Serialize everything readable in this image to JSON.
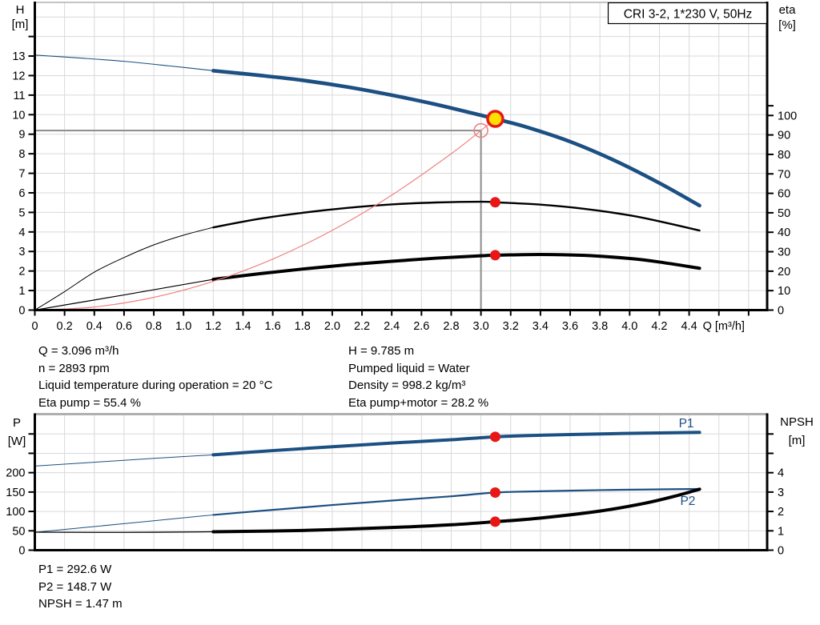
{
  "title_box": "CRI 3-2, 1*230 V, 50Hz",
  "colors": {
    "curve_blue": "#1c4f82",
    "black": "#000000",
    "red": "#e81717",
    "salmon": "#f08080",
    "duty_yellow": "#ffdf00",
    "grid": "#d9d9d9",
    "crosshair": "#8c8c8c",
    "axis": "#000000",
    "top_border": "#b0b0b0",
    "text": "#000000"
  },
  "info_top": {
    "left": [
      "Q = 3.096 m³/h",
      "n = 2893 rpm",
      "Liquid temperature during operation = 20 °C",
      "Eta pump = 55.4 %"
    ],
    "right": [
      "H = 9.785 m",
      "Pumped liquid = Water",
      "Density = 998.2 kg/m³",
      "Eta pump+motor = 28.2 %"
    ]
  },
  "info_bottom": [
    "P1 = 292.6 W",
    "P2 = 148.7 W",
    "NPSH = 1.47 m"
  ],
  "chart_data": [
    {
      "type": "line",
      "title": "CRI 3-2, 1*230 V, 50Hz",
      "x_axis": {
        "label": "Q [m³/h]",
        "min": 0,
        "max": 4.93,
        "tick_step": 0.2,
        "grid_max": 4.8,
        "tick_labels": [
          "0",
          "0.2",
          "0.4",
          "0.6",
          "0.8",
          "1.0",
          "1.2",
          "1.4",
          "1.6",
          "1.8",
          "2.0",
          "2.2",
          "2.4",
          "2.6",
          "2.8",
          "3.0",
          "3.2",
          "3.4",
          "3.6",
          "3.8",
          "4.0",
          "4.2",
          "4.4"
        ],
        "extra_ticks": [
          4.6,
          4.8
        ]
      },
      "left_axis": {
        "title": [
          "H",
          "[m]"
        ],
        "scale": "H",
        "ticks": [
          0,
          1,
          2,
          3,
          4,
          5,
          6,
          7,
          8,
          9,
          10,
          11,
          12,
          13
        ],
        "extra_ticks": [
          14
        ],
        "range": [
          0,
          15.7
        ]
      },
      "right_axis": {
        "title": [
          "eta",
          "[%]"
        ],
        "scale": "eta",
        "ticks": [
          0,
          10,
          20,
          30,
          40,
          50,
          60,
          70,
          80,
          90,
          100
        ],
        "extra_ticks": [
          105
        ],
        "range": [
          0,
          158
        ]
      },
      "h_grid": {
        "scale": "H",
        "values": [
          1,
          2,
          3,
          4,
          5,
          6,
          7,
          8,
          9,
          10,
          11,
          12,
          13,
          14,
          15
        ]
      },
      "series": [
        {
          "name": "head-curve",
          "scale": "H",
          "color": "curve_blue",
          "segments": [
            {
              "width": 1.1,
              "points": [
                [
                  0,
                  13.05
                ],
                [
                  0.3,
                  12.9
                ],
                [
                  0.6,
                  12.73
                ],
                [
                  0.9,
                  12.5
                ],
                [
                  1.2,
                  12.25
                ]
              ]
            },
            {
              "width": 4.6,
              "points": [
                [
                  1.2,
                  12.25
                ],
                [
                  1.5,
                  12.02
                ],
                [
                  1.8,
                  11.76
                ],
                [
                  2.1,
                  11.42
                ],
                [
                  2.4,
                  11.0
                ],
                [
                  2.7,
                  10.52
                ],
                [
                  3.0,
                  9.97
                ],
                [
                  3.096,
                  9.785
                ],
                [
                  3.3,
                  9.38
                ],
                [
                  3.6,
                  8.62
                ],
                [
                  3.9,
                  7.65
                ],
                [
                  4.2,
                  6.5
                ],
                [
                  4.47,
                  5.35
                ]
              ]
            }
          ]
        },
        {
          "name": "eta-pump-curve",
          "scale": "eta",
          "color": "black",
          "segments": [
            {
              "width": 1.0,
              "points": [
                [
                  0,
                  0
                ],
                [
                  0.2,
                  9.5
                ],
                [
                  0.4,
                  19.5
                ],
                [
                  0.6,
                  27
                ],
                [
                  0.8,
                  33.5
                ],
                [
                  1.0,
                  38.5
                ],
                [
                  1.2,
                  42.5
                ]
              ]
            },
            {
              "width": 2.4,
              "points": [
                [
                  1.2,
                  42.5
                ],
                [
                  1.5,
                  46.8
                ],
                [
                  1.8,
                  50
                ],
                [
                  2.1,
                  52.5
                ],
                [
                  2.4,
                  54.3
                ],
                [
                  2.7,
                  55.3
                ],
                [
                  3.0,
                  55.7
                ],
                [
                  3.096,
                  55.4
                ],
                [
                  3.4,
                  54.2
                ],
                [
                  3.7,
                  52
                ],
                [
                  4.0,
                  48.7
                ],
                [
                  4.2,
                  45.6
                ],
                [
                  4.47,
                  40.9
                ]
              ]
            }
          ]
        },
        {
          "name": "eta-pump-motor-curve",
          "scale": "eta",
          "color": "black",
          "segments": [
            {
              "width": 1.2,
              "points": [
                [
                  0,
                  0
                ],
                [
                  0.3,
                  3.9
                ],
                [
                  0.6,
                  7.8
                ],
                [
                  0.9,
                  11.8
                ],
                [
                  1.2,
                  15.8
                ]
              ]
            },
            {
              "width": 4.0,
              "points": [
                [
                  1.2,
                  15.8
                ],
                [
                  1.5,
                  18.6
                ],
                [
                  1.8,
                  21.1
                ],
                [
                  2.1,
                  23.3
                ],
                [
                  2.4,
                  25.1
                ],
                [
                  2.7,
                  26.7
                ],
                [
                  3.0,
                  27.9
                ],
                [
                  3.096,
                  28.2
                ],
                [
                  3.4,
                  28.6
                ],
                [
                  3.7,
                  28.1
                ],
                [
                  4.0,
                  26.5
                ],
                [
                  4.2,
                  24.7
                ],
                [
                  4.47,
                  21.5
                ]
              ]
            }
          ]
        },
        {
          "name": "system-curve",
          "scale": "H",
          "color": "salmon",
          "segments": [
            {
              "width": 1.2,
              "points": [
                [
                  0,
                  0
                ],
                [
                  0.4,
                  0.16
                ],
                [
                  0.8,
                  0.65
                ],
                [
                  1.2,
                  1.47
                ],
                [
                  1.6,
                  2.61
                ],
                [
                  2.0,
                  4.08
                ],
                [
                  2.4,
                  5.88
                ],
                [
                  2.8,
                  8.0
                ],
                [
                  3.0,
                  9.19
                ],
                [
                  3.096,
                  9.785
                ]
              ]
            }
          ]
        }
      ],
      "crosshair": {
        "q": 3.0,
        "value": 9.19,
        "scale": "H"
      },
      "markers": [
        {
          "name": "requested-duty-ring",
          "kind": "ring",
          "q": 3.0,
          "value": 9.19,
          "scale": "H"
        },
        {
          "name": "duty-point-marker",
          "kind": "duty",
          "q": 3.096,
          "value": 9.785,
          "scale": "H"
        },
        {
          "name": "eta-pump-dot",
          "kind": "dot",
          "q": 3.096,
          "value": 55.4,
          "scale": "eta"
        },
        {
          "name": "eta-pump-motor-dot",
          "kind": "dot",
          "q": 3.096,
          "value": 28.2,
          "scale": "eta"
        }
      ],
      "labels": []
    },
    {
      "type": "line",
      "title": "",
      "x_axis": {
        "label": "",
        "min": 0,
        "max": 4.93,
        "tick_step": 0.2,
        "grid_max": 4.8,
        "tick_labels": [],
        "extra_ticks": []
      },
      "left_axis": {
        "title": [
          "P",
          "[W]"
        ],
        "scale": "P",
        "ticks": [
          0,
          50,
          100,
          150,
          200
        ],
        "extra_ticks": [
          250,
          300
        ],
        "range": [
          0,
          351
        ]
      },
      "right_axis": {
        "title": [
          "NPSH",
          "[m]"
        ],
        "scale": "NPSH",
        "ticks": [
          0,
          1,
          2,
          3,
          4
        ],
        "extra_ticks": [
          5,
          6
        ],
        "range": [
          0,
          7
        ]
      },
      "h_grid": {
        "scale": "P",
        "values": [
          50,
          100,
          150,
          200,
          250,
          300
        ]
      },
      "series": [
        {
          "name": "p1-curve",
          "scale": "P",
          "color": "curve_blue",
          "segments": [
            {
              "width": 1.0,
              "points": [
                [
                  0,
                  217
                ],
                [
                  0.4,
                  227
                ],
                [
                  0.8,
                  237
                ],
                [
                  1.2,
                  246
                ]
              ]
            },
            {
              "width": 4.0,
              "points": [
                [
                  1.2,
                  246
                ],
                [
                  1.6,
                  257
                ],
                [
                  2.0,
                  267
                ],
                [
                  2.4,
                  276.5
                ],
                [
                  2.8,
                  285
                ],
                [
                  3.096,
                  292.6
                ],
                [
                  3.4,
                  296.5
                ],
                [
                  3.8,
                  300
                ],
                [
                  4.1,
                  302
                ],
                [
                  4.47,
                  304
                ]
              ]
            }
          ]
        },
        {
          "name": "p2-curve",
          "scale": "P",
          "color": "curve_blue",
          "segments": [
            {
              "width": 1.0,
              "points": [
                [
                  0,
                  46
                ],
                [
                  0.4,
                  61
                ],
                [
                  0.8,
                  76
                ],
                [
                  1.2,
                  91
                ]
              ]
            },
            {
              "width": 2.2,
              "points": [
                [
                  1.2,
                  91
                ],
                [
                  1.6,
                  104
                ],
                [
                  2.0,
                  116.5
                ],
                [
                  2.4,
                  128
                ],
                [
                  2.8,
                  139
                ],
                [
                  3.096,
                  148.7
                ],
                [
                  3.4,
                  152
                ],
                [
                  3.8,
                  155
                ],
                [
                  4.1,
                  156.5
                ],
                [
                  4.47,
                  158
                ]
              ]
            }
          ]
        },
        {
          "name": "npsh-curve",
          "scale": "NPSH",
          "color": "black",
          "segments": [
            {
              "width": 1.3,
              "points": [
                [
                  0,
                  0.93
                ],
                [
                  0.6,
                  0.92
                ],
                [
                  1.2,
                  0.95
                ]
              ]
            },
            {
              "width": 4.0,
              "points": [
                [
                  1.2,
                  0.95
                ],
                [
                  1.8,
                  1.02
                ],
                [
                  2.4,
                  1.17
                ],
                [
                  2.8,
                  1.31
                ],
                [
                  3.096,
                  1.47
                ],
                [
                  3.4,
                  1.66
                ],
                [
                  3.8,
                  2.02
                ],
                [
                  4.1,
                  2.42
                ],
                [
                  4.3,
                  2.78
                ],
                [
                  4.47,
                  3.15
                ]
              ]
            }
          ]
        }
      ],
      "crosshair": null,
      "markers": [
        {
          "name": "p1-dot",
          "kind": "dot",
          "q": 3.096,
          "value": 292.6,
          "scale": "P"
        },
        {
          "name": "p2-dot",
          "kind": "dot",
          "q": 3.096,
          "value": 148.7,
          "scale": "P"
        },
        {
          "name": "npsh-dot",
          "kind": "dot",
          "q": 3.096,
          "value": 1.47,
          "scale": "NPSH"
        }
      ],
      "labels": [
        {
          "text": "P1",
          "q": 4.33,
          "value": 317,
          "scale": "P",
          "color": "curve_blue"
        },
        {
          "text": "P2",
          "q": 4.34,
          "value": 117,
          "scale": "P",
          "color": "curve_blue"
        }
      ]
    }
  ]
}
